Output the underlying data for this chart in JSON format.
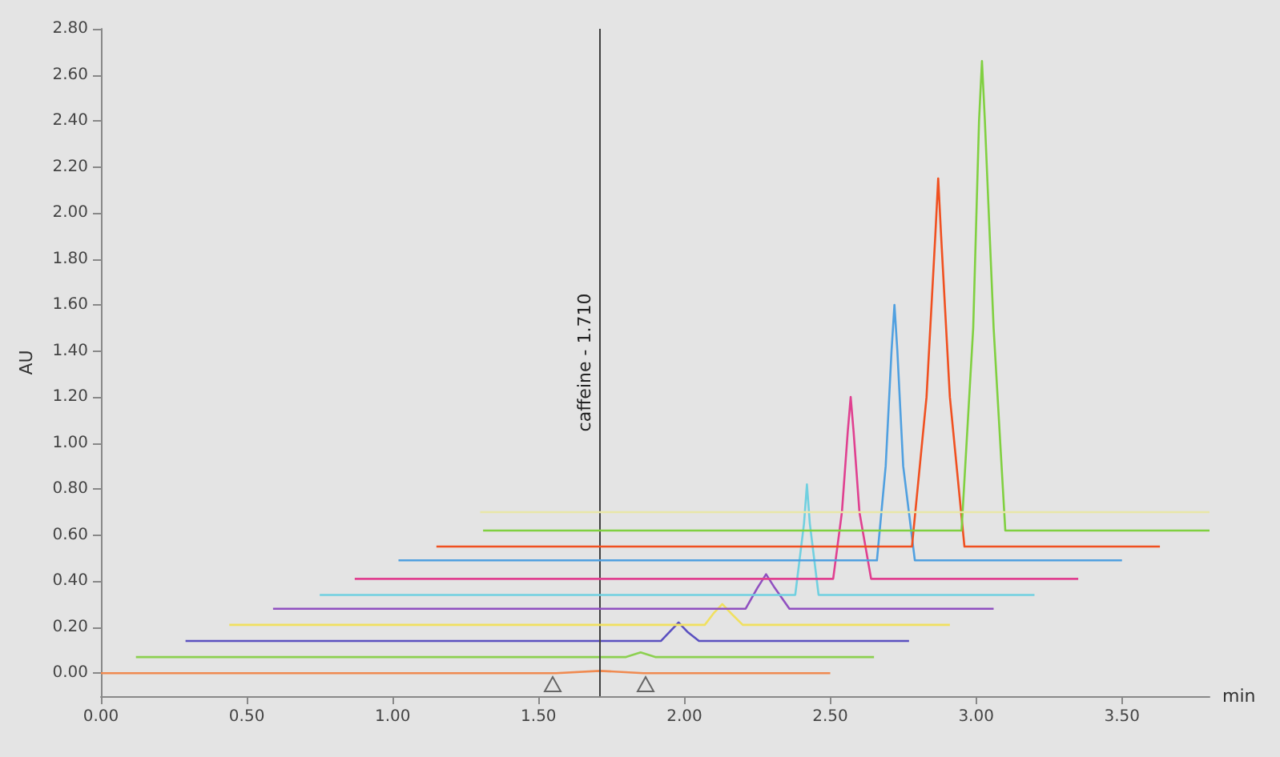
{
  "chart_data": {
    "type": "line",
    "xlabel": "min",
    "ylabel": "AU",
    "xlim": [
      0,
      3.8
    ],
    "ylim": [
      -0.1,
      2.8
    ],
    "xticks": [
      {
        "value": 0,
        "label": "0.00"
      },
      {
        "value": 0.5,
        "label": "0.50"
      },
      {
        "value": 1,
        "label": "1.00"
      },
      {
        "value": 1.5,
        "label": "1.50"
      },
      {
        "value": 2,
        "label": "2.00"
      },
      {
        "value": 2.5,
        "label": "2.50"
      },
      {
        "value": 3,
        "label": "3.00"
      },
      {
        "value": 3.5,
        "label": "3.50"
      }
    ],
    "yticks": [
      {
        "value": 0,
        "label": "0.00"
      },
      {
        "value": 0.2,
        "label": "0.20"
      },
      {
        "value": 0.4,
        "label": "0.40"
      },
      {
        "value": 0.6,
        "label": "0.60"
      },
      {
        "value": 0.8,
        "label": "0.80"
      },
      {
        "value": 1,
        "label": "1.00"
      },
      {
        "value": 1.2,
        "label": "1.20"
      },
      {
        "value": 1.4,
        "label": "1.40"
      },
      {
        "value": 1.6,
        "label": "1.60"
      },
      {
        "value": 1.8,
        "label": "1.80"
      },
      {
        "value": 2,
        "label": "2.00"
      },
      {
        "value": 2.2,
        "label": "2.20"
      },
      {
        "value": 2.4,
        "label": "2.40"
      },
      {
        "value": 2.6,
        "label": "2.60"
      },
      {
        "value": 2.8,
        "label": "2.80"
      }
    ],
    "grid": false,
    "marker": "none",
    "line_style": "solid",
    "ref_lines": [
      {
        "axis": "x",
        "value": 1.71,
        "label": "caffeine - 1.710",
        "color": "#404040"
      }
    ],
    "series": [
      {
        "color": "#f08a50",
        "x": [
          0,
          1.56,
          1.71,
          1.86,
          2.5
        ],
        "values": [
          0,
          0,
          0.01,
          0,
          0
        ]
      },
      {
        "color": "#8cd050",
        "x": [
          0.12,
          1.8,
          1.85,
          1.9,
          2.65
        ],
        "values": [
          0.07,
          0.07,
          0.09,
          0.07,
          0.07
        ]
      },
      {
        "color": "#5a50c0",
        "x": [
          0.29,
          1.92,
          1.95,
          1.98,
          2.01,
          2.05,
          2.77
        ],
        "values": [
          0.14,
          0.14,
          0.18,
          0.22,
          0.18,
          0.14,
          0.14
        ]
      },
      {
        "color": "#f0e060",
        "x": [
          0.44,
          2.07,
          2.1,
          2.13,
          2.16,
          2.2,
          2.91
        ],
        "values": [
          0.21,
          0.21,
          0.26,
          0.3,
          0.26,
          0.21,
          0.21
        ]
      },
      {
        "color": "#9050c0",
        "x": [
          0.59,
          2.21,
          2.25,
          2.28,
          2.31,
          2.36,
          3.06
        ],
        "values": [
          0.28,
          0.28,
          0.37,
          0.43,
          0.37,
          0.28,
          0.28
        ]
      },
      {
        "color": "#70d0e0",
        "x": [
          0.75,
          2.38,
          2.41,
          2.42,
          2.43,
          2.46,
          3.2
        ],
        "values": [
          0.34,
          0.34,
          0.65,
          0.82,
          0.65,
          0.34,
          0.34
        ]
      },
      {
        "color": "#e04090",
        "x": [
          0.87,
          2.51,
          2.54,
          2.56,
          2.57,
          2.58,
          2.6,
          2.64,
          3.35
        ],
        "values": [
          0.41,
          0.41,
          0.7,
          1.05,
          1.2,
          1.05,
          0.7,
          0.41,
          0.41
        ]
      },
      {
        "color": "#50a0e0",
        "x": [
          1.02,
          2.66,
          2.69,
          2.71,
          2.72,
          2.73,
          2.75,
          2.79,
          3.5
        ],
        "values": [
          0.49,
          0.49,
          0.9,
          1.4,
          1.6,
          1.4,
          0.9,
          0.49,
          0.49
        ]
      },
      {
        "color": "#f05020",
        "x": [
          1.15,
          2.78,
          2.83,
          2.86,
          2.87,
          2.88,
          2.91,
          2.96,
          3.63
        ],
        "values": [
          0.55,
          0.55,
          1.2,
          1.9,
          2.15,
          1.9,
          1.2,
          0.55,
          0.55
        ]
      },
      {
        "color": "#80d040",
        "x": [
          1.31,
          2.95,
          2.99,
          3.01,
          3.02,
          3.03,
          3.06,
          3.1,
          3.8
        ],
        "values": [
          0.62,
          0.62,
          1.5,
          2.4,
          2.66,
          2.4,
          1.5,
          0.62,
          0.62
        ]
      },
      {
        "color": "#e8e6a8",
        "x": [
          1.3,
          3.8
        ],
        "values": [
          0.7,
          0.7
        ]
      }
    ]
  }
}
